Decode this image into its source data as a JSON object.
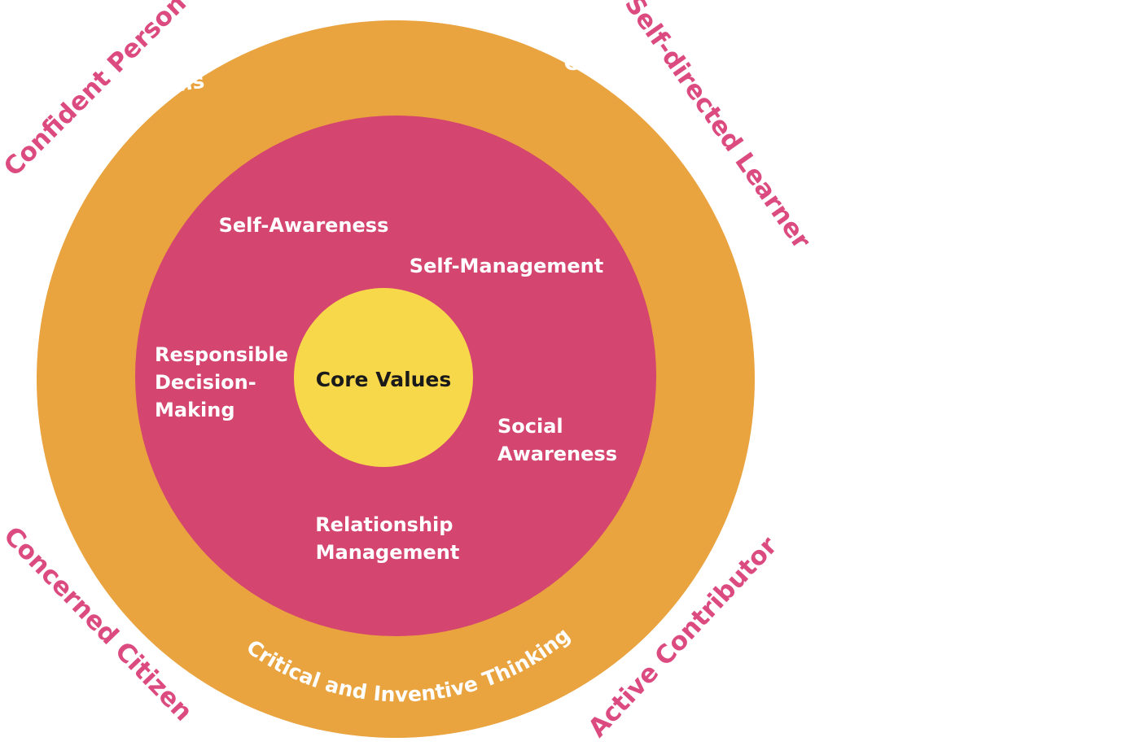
{
  "colors": {
    "outer_ring": "#e9a33f",
    "middle_disc": "#d44570",
    "core": "#f8d84b",
    "ring_text": "#ffffff",
    "middle_text": "#ffffff",
    "core_text": "#1a1a1a",
    "outcome_text": "#dc4b7f",
    "background": "#ffffff"
  },
  "outcomes": {
    "top_left": "Confident Person",
    "top_right": "Self-directed Learner",
    "bottom_left": "Concerned Citizen",
    "bottom_right": "Active Contributor"
  },
  "outer_ring": {
    "left": "Communication, Collaboration and Information Skills",
    "right": "Civic Literacy, Global Awareness and Cross-cultural Skills",
    "bottom": "Critical and Inventive Thinking"
  },
  "competencies": {
    "self_awareness": "Self-Awareness",
    "self_management": "Self-Management",
    "responsible_decision_making": [
      "Responsible",
      "Decision-",
      "Making"
    ],
    "social_awareness": [
      "Social",
      "Awareness"
    ],
    "relationship_management": [
      "Relationship",
      "Management"
    ]
  },
  "core": {
    "label": "Core Values"
  }
}
